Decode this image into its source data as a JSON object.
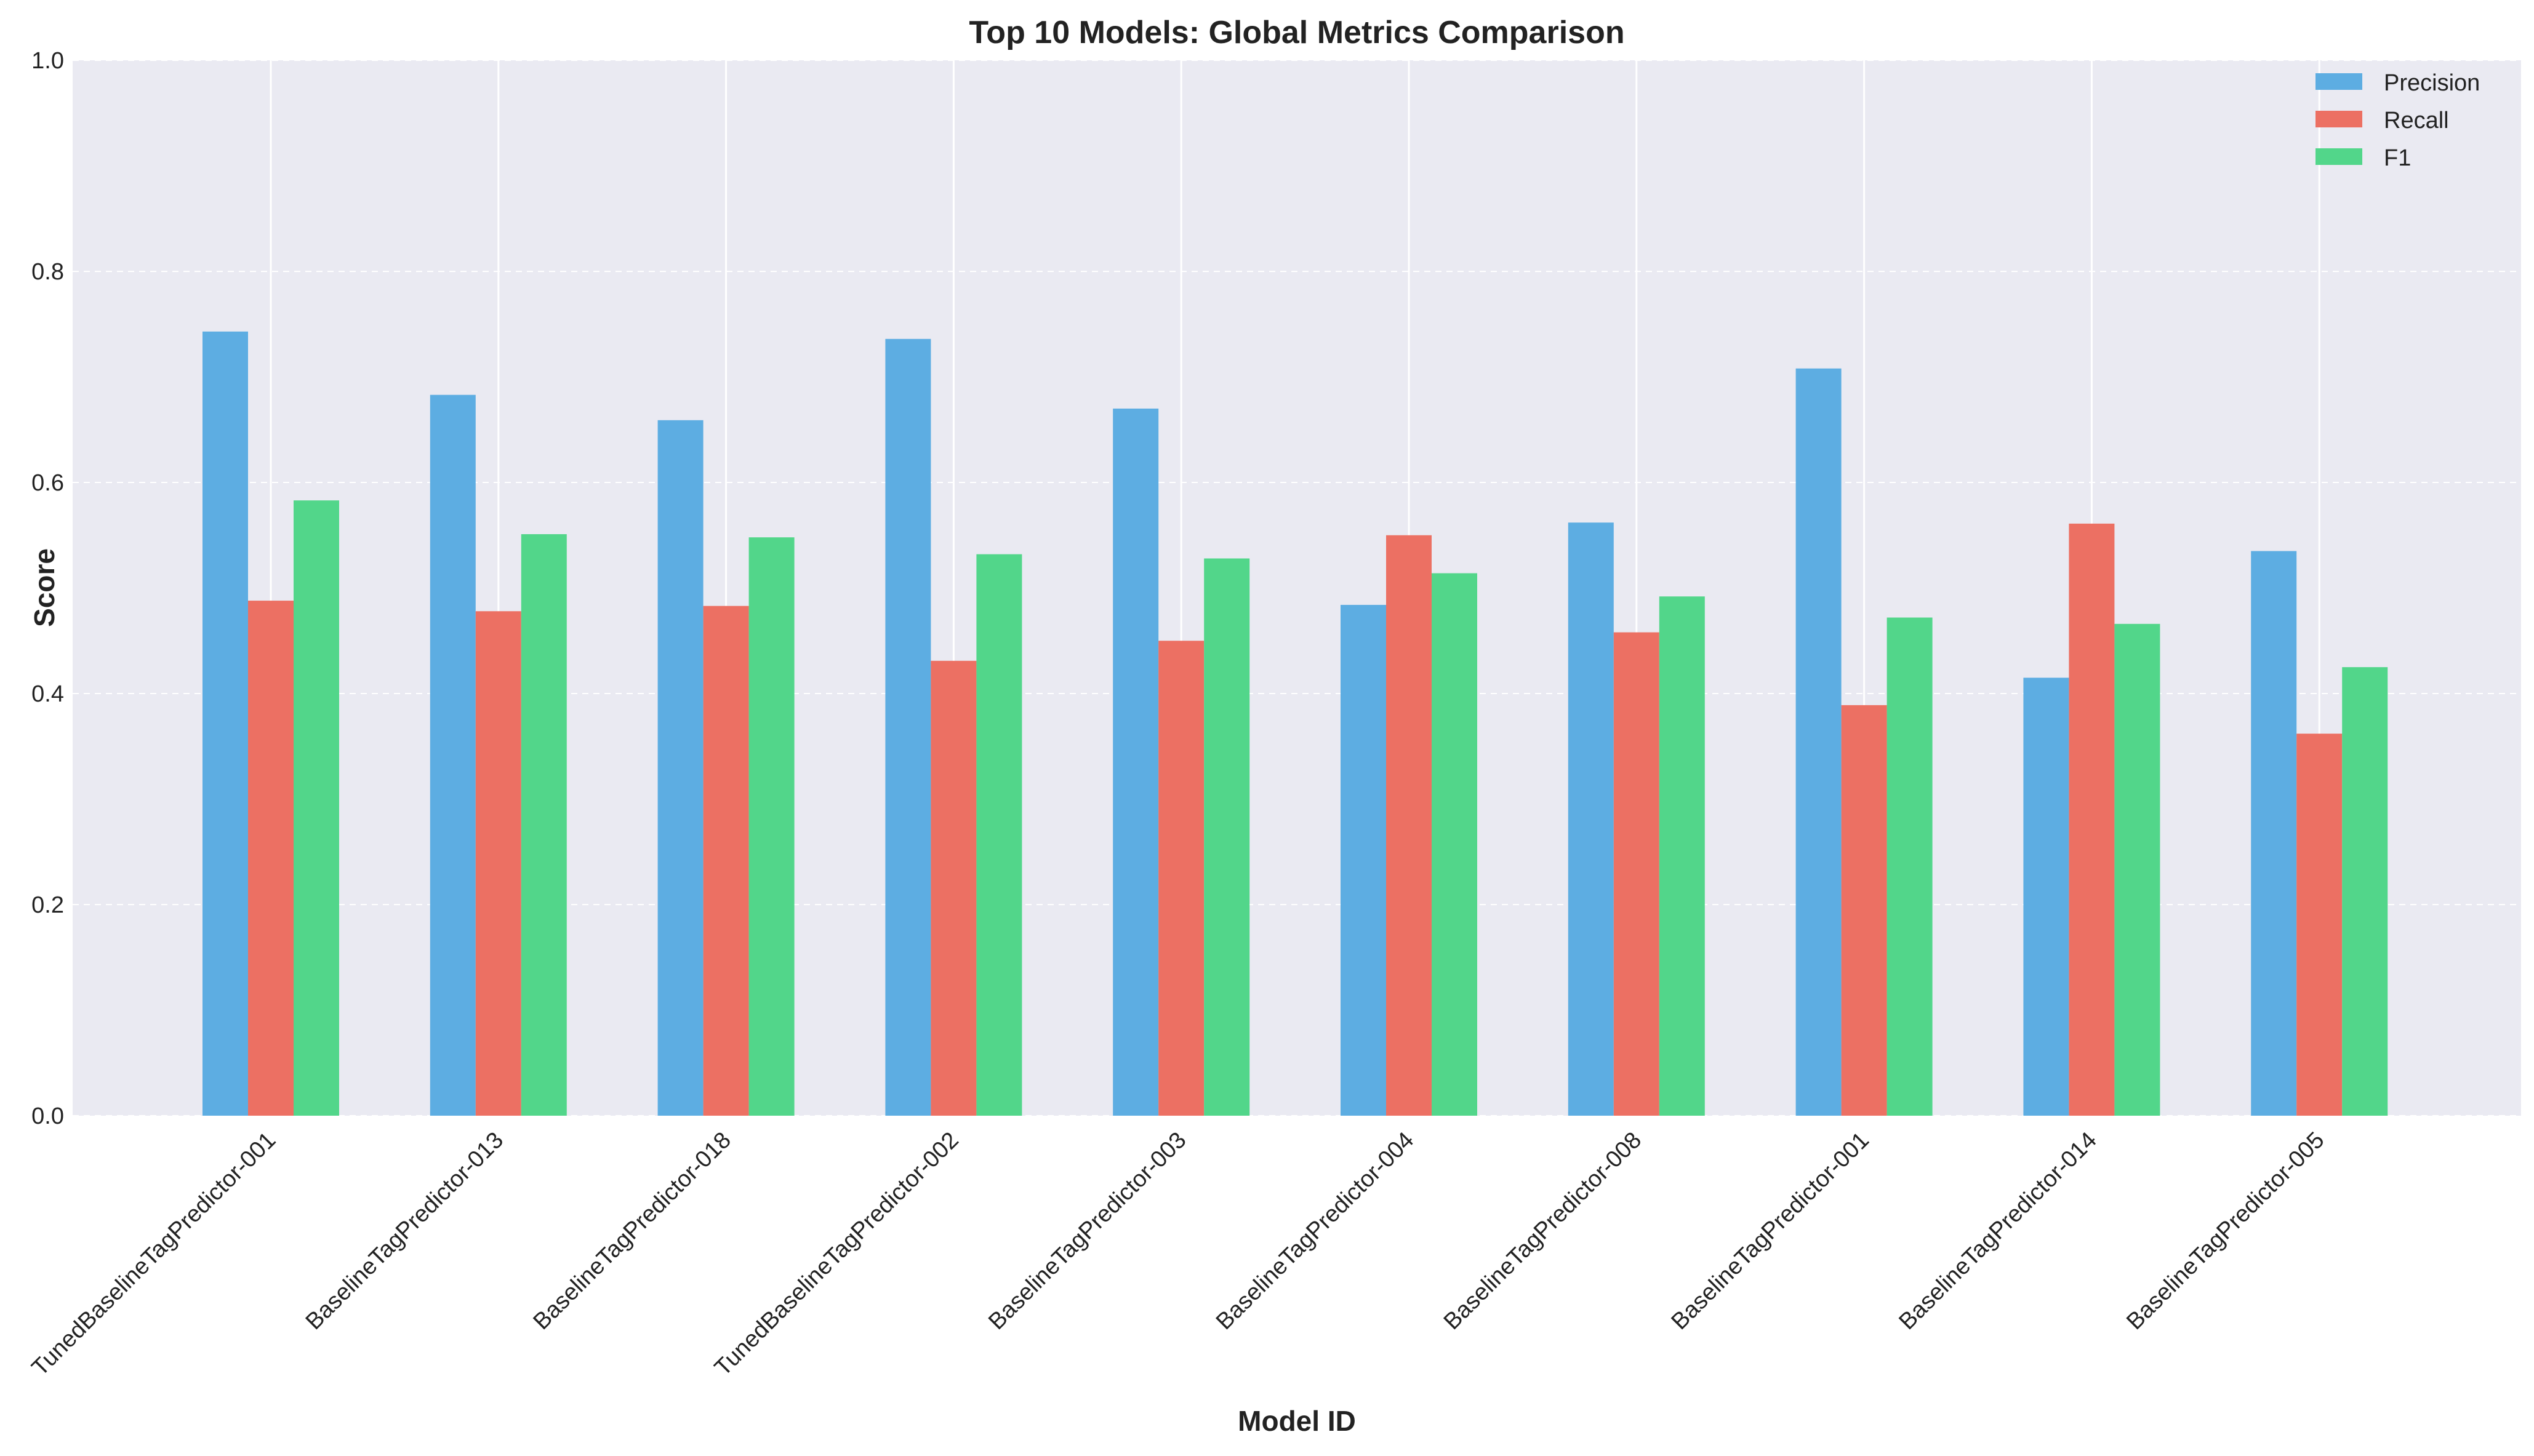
{
  "chart_data": {
    "type": "bar",
    "title": "Top 10 Models: Global Metrics Comparison",
    "xlabel": "Model ID",
    "ylabel": "Score",
    "ylim": [
      0,
      1.0
    ],
    "yticks": [
      "0.0",
      "0.2",
      "0.4",
      "0.6",
      "0.8",
      "1.0"
    ],
    "grid": true,
    "legend_position": "top-right",
    "categories": [
      "TunedBaselineTagPredictor-001",
      "BaselineTagPredictor-013",
      "BaselineTagPredictor-018",
      "TunedBaselineTagPredictor-002",
      "BaselineTagPredictor-003",
      "BaselineTagPredictor-004",
      "BaselineTagPredictor-008",
      "BaselineTagPredictor-001",
      "BaselineTagPredictor-014",
      "BaselineTagPredictor-005"
    ],
    "series": [
      {
        "name": "Precision",
        "color": "#5dade2",
        "values": [
          0.743,
          0.683,
          0.659,
          0.736,
          0.67,
          0.484,
          0.562,
          0.708,
          0.415,
          0.535
        ]
      },
      {
        "name": "Recall",
        "color": "#ec7063",
        "values": [
          0.488,
          0.478,
          0.483,
          0.431,
          0.45,
          0.55,
          0.458,
          0.389,
          0.561,
          0.362
        ]
      },
      {
        "name": "F1",
        "color": "#52d68a",
        "values": [
          0.583,
          0.551,
          0.548,
          0.532,
          0.528,
          0.514,
          0.492,
          0.472,
          0.466,
          0.425
        ]
      }
    ]
  }
}
